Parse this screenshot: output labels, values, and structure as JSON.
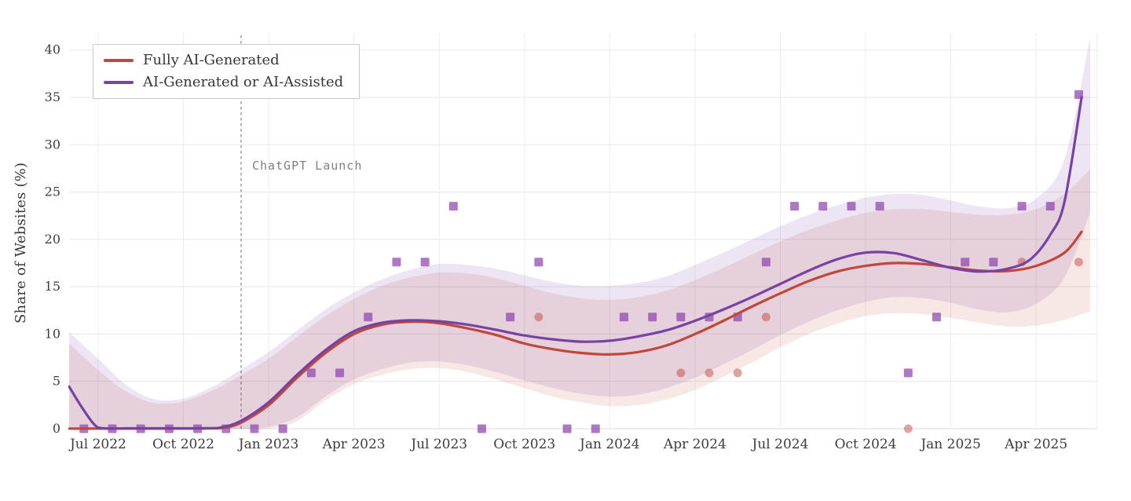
{
  "chart_data": {
    "type": "line",
    "title": "",
    "ylabel": "Share of Websites (%)",
    "x_unit": "months since Jul 2022 (t=0 -> Jul 1, 2022; scatter points are mid-month)",
    "xlim": [
      -1.02,
      35.15
    ],
    "ylim": [
      0,
      41.8
    ],
    "grid": true,
    "legend_position": "upper left",
    "y_ticks": [
      0,
      5,
      10,
      15,
      20,
      25,
      30,
      35,
      40
    ],
    "x_ticks": {
      "t": [
        0,
        3,
        6,
        9,
        12,
        15,
        18,
        21,
        24,
        27,
        30,
        33
      ],
      "labels": [
        "Jul 2022",
        "Oct 2022",
        "Jan 2023",
        "Apr 2023",
        "Jul 2023",
        "Oct 2023",
        "Jan 2024",
        "Apr 2024",
        "Jul 2024",
        "Oct 2024",
        "Jan 2025",
        "Apr 2025"
      ]
    },
    "annotation": {
      "label": "ChatGPT Launch",
      "t": 5.03,
      "style": "dashed-vertical"
    },
    "band_t": [
      -1.02,
      0,
      1,
      2,
      3,
      4,
      5,
      6,
      7,
      8,
      9,
      10,
      11,
      12,
      13,
      14,
      15,
      16,
      17,
      18,
      19,
      20,
      21,
      22,
      23,
      24,
      25,
      26,
      27,
      28,
      29,
      30,
      31,
      32,
      33,
      34,
      34.9
    ],
    "series": [
      {
        "name": "Fully AI-Generated",
        "color": "#c0473b",
        "marker": "circle",
        "marker_fill": "rgba(193,74,61,0.5)",
        "band_fill": "rgba(197,84,70,0.14)",
        "line": {
          "t": [
            -1.02,
            0,
            1,
            2,
            3,
            4,
            4.4,
            5,
            6,
            7,
            8,
            9,
            10,
            11,
            12,
            13,
            14,
            15,
            16,
            17,
            18,
            19,
            20,
            21,
            22,
            23,
            24,
            25,
            26,
            27,
            28,
            29,
            30,
            31,
            32,
            33,
            34,
            34.6
          ],
          "y": [
            0.02,
            0.02,
            0.02,
            0.02,
            0.02,
            0.05,
            0.1,
            0.6,
            2.5,
            5.4,
            8.0,
            10.0,
            11.0,
            11.3,
            11.15,
            10.6,
            9.9,
            9.0,
            8.4,
            8.0,
            7.85,
            8.1,
            8.8,
            10.0,
            11.4,
            12.9,
            14.3,
            15.6,
            16.6,
            17.2,
            17.5,
            17.4,
            17.05,
            16.7,
            16.65,
            17.2,
            18.6,
            20.8
          ]
        },
        "band_upper": [
          9.0,
          6.2,
          3.9,
          2.7,
          2.9,
          4.0,
          5.6,
          7.4,
          9.7,
          11.9,
          13.7,
          15.1,
          16.0,
          16.5,
          16.4,
          15.9,
          15.1,
          14.3,
          13.8,
          13.6,
          13.9,
          14.6,
          15.7,
          17.0,
          18.4,
          19.8,
          21.0,
          22.0,
          22.8,
          23.2,
          23.2,
          22.9,
          22.6,
          22.6,
          23.2,
          24.8,
          27.4
        ],
        "band_lower": [
          0,
          0,
          0,
          0,
          0,
          0,
          0,
          0,
          0.8,
          3.0,
          4.7,
          5.7,
          6.3,
          6.4,
          6.0,
          5.2,
          4.3,
          3.4,
          2.8,
          2.4,
          2.5,
          3.1,
          4.1,
          5.5,
          7.0,
          8.6,
          10.0,
          11.1,
          11.9,
          12.2,
          12.1,
          11.7,
          11.2,
          10.8,
          10.9,
          11.5,
          12.4
        ],
        "points": {
          "t": [
            15.5,
            20.5,
            21.5,
            22.5,
            23.5,
            28.5,
            32.5,
            34.5
          ],
          "y": [
            11.8,
            5.9,
            5.9,
            5.9,
            11.8,
            0,
            17.6,
            17.6
          ]
        }
      },
      {
        "name": "AI-Generated or AI-Assisted",
        "color": "#7643a4",
        "marker": "square",
        "marker_fill": "rgba(142,68,173,0.72)",
        "band_fill": "rgba(126,70,168,0.14)",
        "line": {
          "t": [
            -1.02,
            -0.6,
            -0.15,
            0.15,
            1,
            2,
            3,
            3.8,
            4.3,
            5,
            6,
            7,
            8,
            9,
            10,
            11,
            12,
            13,
            14,
            15,
            16,
            17,
            18,
            19,
            20,
            21,
            22,
            23,
            24,
            25,
            26,
            27,
            28,
            29,
            30,
            31,
            32,
            32.8,
            33.5,
            34,
            34.6
          ],
          "y": [
            4.45,
            2.4,
            0.5,
            0.06,
            0.04,
            0.04,
            0.04,
            0.05,
            0.12,
            0.8,
            2.8,
            5.7,
            8.3,
            10.3,
            11.2,
            11.45,
            11.35,
            11.0,
            10.45,
            9.85,
            9.45,
            9.2,
            9.3,
            9.75,
            10.4,
            11.4,
            12.6,
            13.9,
            15.3,
            16.7,
            17.9,
            18.6,
            18.55,
            17.8,
            17.0,
            16.6,
            16.9,
            17.9,
            20.5,
            24.0,
            35.0
          ]
        },
        "band_upper": [
          10.2,
          7.4,
          4.6,
          3.1,
          3.2,
          4.4,
          6.2,
          8.1,
          10.4,
          12.6,
          14.4,
          15.8,
          16.8,
          17.4,
          17.3,
          16.9,
          16.2,
          15.5,
          15.1,
          15.1,
          15.4,
          16.1,
          17.3,
          18.6,
          20.0,
          21.4,
          22.6,
          23.6,
          24.4,
          24.8,
          24.7,
          24.1,
          23.5,
          23.3,
          24.3,
          28.5,
          41.3
        ],
        "band_lower": [
          0,
          0,
          0,
          0,
          0,
          0,
          0,
          0.2,
          1.2,
          3.4,
          5.2,
          6.3,
          7.0,
          7.1,
          6.7,
          6.0,
          5.1,
          4.3,
          3.7,
          3.4,
          3.6,
          4.3,
          5.4,
          6.8,
          8.3,
          9.9,
          11.3,
          12.5,
          13.4,
          13.9,
          13.8,
          13.3,
          12.6,
          12.3,
          13.2,
          16.0,
          22.8
        ],
        "points": {
          "t": [
            -0.5,
            0.5,
            1.5,
            2.5,
            3.5,
            4.5,
            5.5,
            6.5,
            7.5,
            8.5,
            9.5,
            10.5,
            11.5,
            12.5,
            13.5,
            14.5,
            15.5,
            16.5,
            17.5,
            18.5,
            19.5,
            20.5,
            21.5,
            22.5,
            23.5,
            24.5,
            25.5,
            26.5,
            27.5,
            28.5,
            29.5,
            30.5,
            31.5,
            32.5,
            33.5,
            34.5
          ],
          "y": [
            0,
            0,
            0,
            0,
            0,
            0,
            0,
            0,
            5.9,
            5.9,
            11.8,
            17.6,
            17.6,
            23.5,
            0,
            11.8,
            17.6,
            0,
            0,
            11.8,
            11.8,
            11.8,
            11.8,
            11.8,
            17.6,
            23.5,
            23.5,
            23.5,
            23.5,
            5.9,
            11.8,
            17.6,
            17.6,
            23.5,
            23.5,
            35.3
          ]
        }
      }
    ]
  }
}
